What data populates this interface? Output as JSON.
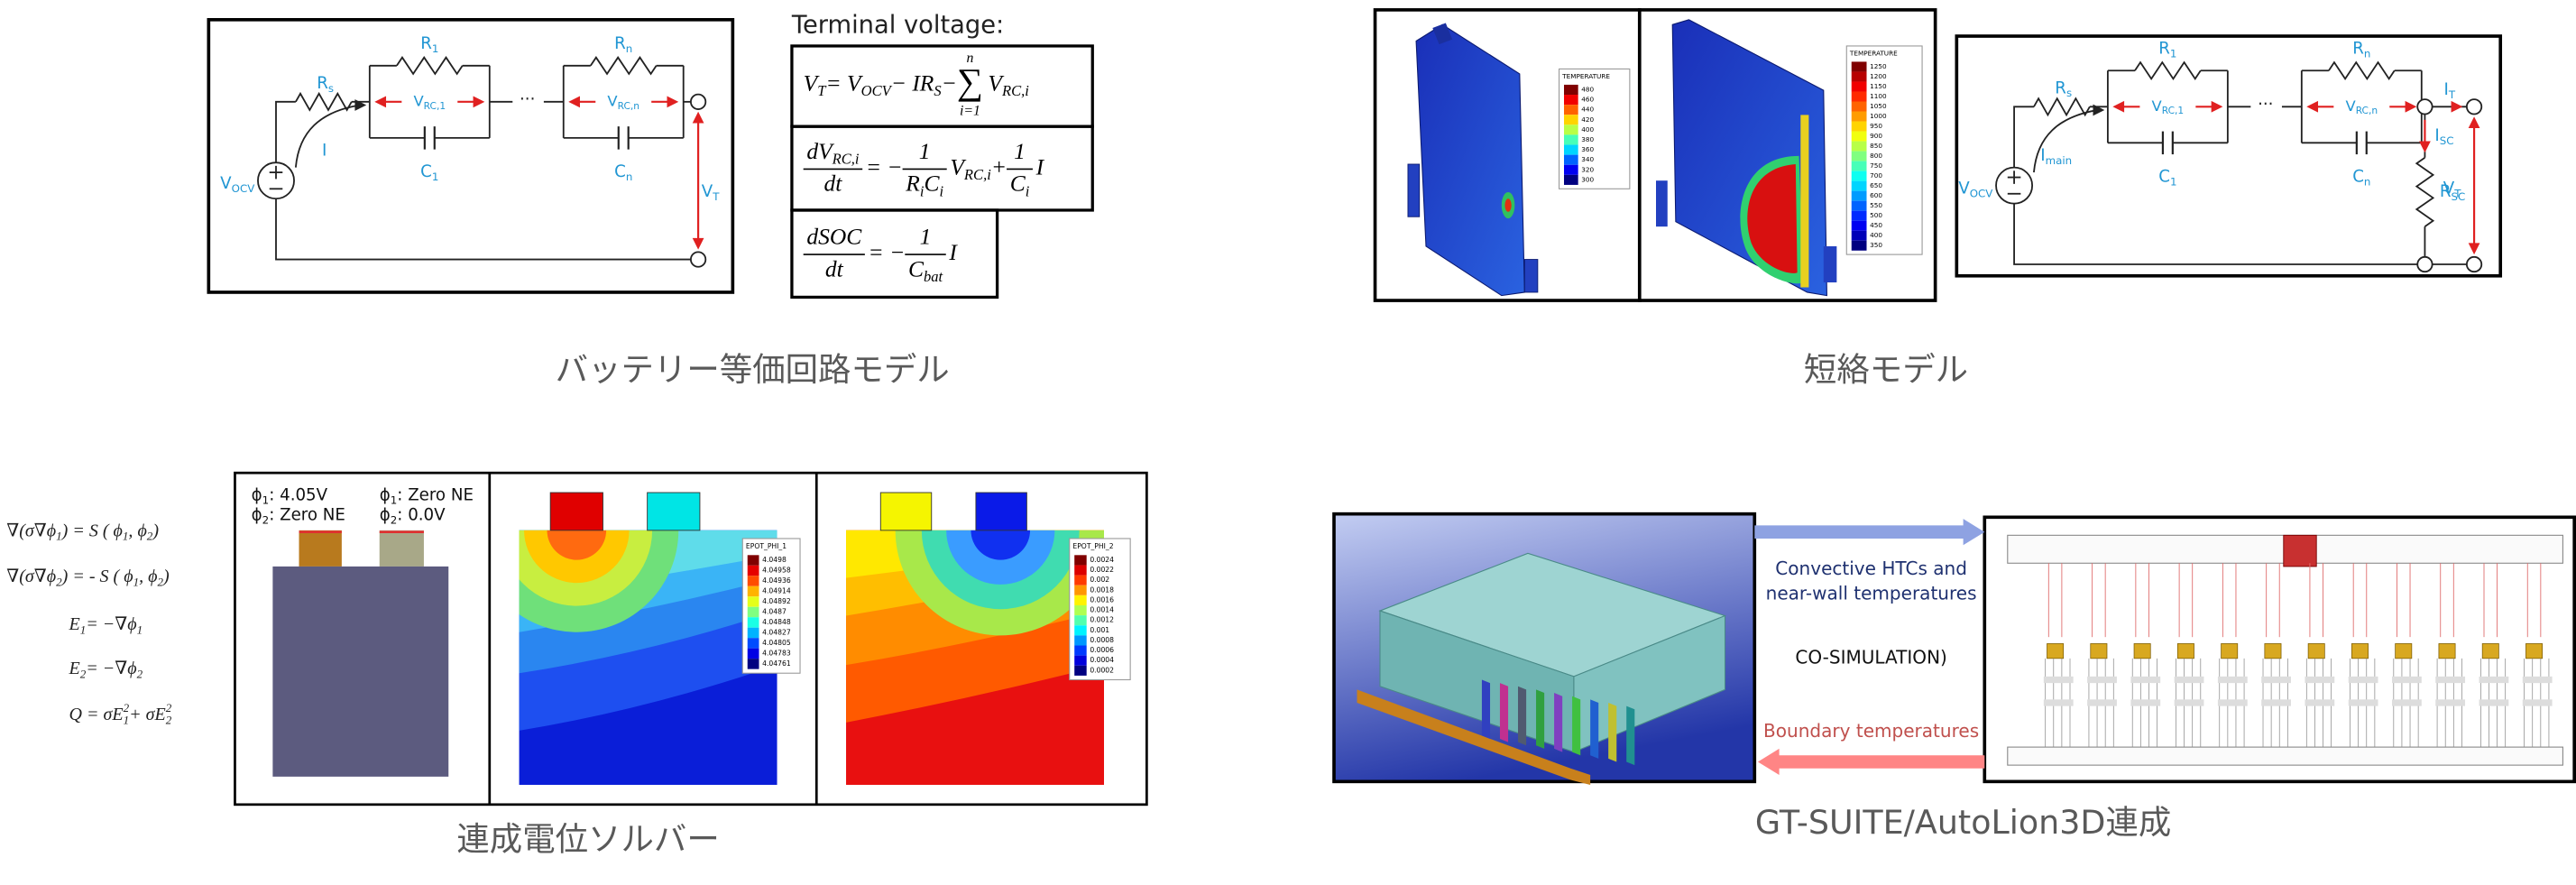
{
  "circuit_model": {
    "caption": "バッテリー等価回路モデル",
    "labels": {
      "rs": [
        "R",
        {
          "sub": "s"
        }
      ],
      "r1": [
        "R",
        {
          "sub": "1"
        }
      ],
      "rn": [
        "R",
        {
          "sub": "n"
        }
      ],
      "c1": [
        "C",
        {
          "sub": "1"
        }
      ],
      "cn": [
        "C",
        {
          "sub": "n"
        }
      ],
      "vrc1": [
        "V",
        {
          "sub": "RC,1"
        }
      ],
      "vrcn": [
        "V",
        {
          "sub": "RC,n"
        }
      ],
      "vocv": [
        "V",
        {
          "sub": "OCV"
        }
      ],
      "current": [
        "I"
      ],
      "vt": [
        "V",
        {
          "sub": "T"
        }
      ],
      "dots": [
        "···"
      ]
    },
    "equations_title": "Terminal voltage:",
    "equations": [
      [
        "V",
        {
          "sub": "T"
        },
        " = V",
        {
          "sub": "OCV"
        },
        " − IR",
        {
          "sub": "S"
        },
        " − ",
        {
          "sum": "∑",
          "top": "n",
          "bot": "i=1"
        },
        "V",
        {
          "sub": "RC,i"
        }
      ],
      [
        {
          "frac": [
            [
              "dV",
              {
                "sub": "RC,i"
              }
            ],
            [
              "dt"
            ]
          ]
        },
        " = −",
        {
          "frac": [
            [
              "1"
            ],
            [
              "R",
              {
                "sub": "i"
              },
              "C",
              {
                "sub": "i"
              }
            ]
          ]
        },
        "V",
        {
          "sub": "RC,i"
        },
        " + ",
        {
          "frac": [
            [
              "1"
            ],
            [
              "C",
              {
                "sub": "i"
              }
            ]
          ]
        },
        "I"
      ],
      [
        {
          "frac": [
            [
              "dSOC"
            ],
            [
              "dt"
            ]
          ]
        },
        " = −",
        {
          "frac": [
            [
              "1"
            ],
            [
              "C",
              {
                "sub": "bat"
              }
            ]
          ]
        },
        "I"
      ]
    ]
  },
  "short_circuit_model": {
    "caption": "短絡モデル",
    "legends": [
      {
        "title": "TEMPERATURE",
        "values": [
          480,
          460,
          440,
          420,
          400,
          380,
          360,
          340,
          320,
          300
        ]
      },
      {
        "title": "TEMPERATURE",
        "values": [
          1250,
          1200,
          1150,
          1100,
          1050,
          1000,
          950,
          900,
          850,
          800,
          750,
          700,
          650,
          600,
          550,
          500,
          450,
          400,
          350
        ]
      }
    ],
    "labels": {
      "rs": [
        "R",
        {
          "sub": "s"
        }
      ],
      "r1": [
        "R",
        {
          "sub": "1"
        }
      ],
      "rn": [
        "R",
        {
          "sub": "n"
        }
      ],
      "c1": [
        "C",
        {
          "sub": "1"
        }
      ],
      "cn": [
        "C",
        {
          "sub": "n"
        }
      ],
      "vrc1": [
        "V",
        {
          "sub": "RC,1"
        }
      ],
      "vrcn": [
        "V",
        {
          "sub": "RC,n"
        }
      ],
      "vocv": [
        "V",
        {
          "sub": "OCV"
        }
      ],
      "current": [
        "I",
        {
          "sub": "main"
        }
      ],
      "vt": [
        "V",
        {
          "sub": "T"
        }
      ],
      "dots": [
        "···"
      ],
      "it": [
        "I",
        {
          "sub": "T"
        }
      ],
      "isc": [
        "I",
        {
          "sub": "SC"
        }
      ],
      "rsc": [
        "R",
        {
          "sub": "SC"
        }
      ]
    }
  },
  "potential_solver": {
    "caption": "連成電位ソルバー",
    "equations": [
      [
        "∇(σ∇ϕ",
        {
          "sub": "1"
        },
        ") =  S ( ϕ",
        {
          "sub": "1"
        },
        " , ϕ",
        {
          "sub": "2"
        },
        " )"
      ],
      [
        "∇(σ∇ϕ",
        {
          "sub": "2"
        },
        ") = - S ( ϕ",
        {
          "sub": "1"
        },
        " , ϕ",
        {
          "sub": "2"
        },
        " )"
      ],
      [
        "E",
        {
          "sub": "1"
        },
        " = −∇ϕ",
        {
          "sub": "1"
        }
      ],
      [
        "E",
        {
          "sub": "2"
        },
        " = −∇ϕ",
        {
          "sub": "2"
        }
      ],
      [
        "Q = σE",
        {
          "sub": "1"
        },
        {
          "sup": "2"
        },
        " + σE",
        {
          "sub": "2"
        },
        {
          "sup": "2"
        }
      ]
    ],
    "tab_labels": [
      [
        "ϕ",
        {
          "sub": "1"
        },
        ": 4.05V"
      ],
      [
        "ϕ",
        {
          "sub": "2"
        },
        ": Zero NE"
      ],
      [
        "ϕ",
        {
          "sub": "1"
        },
        ": Zero NE"
      ],
      [
        "ϕ",
        {
          "sub": "2"
        },
        ": 0.0V"
      ]
    ],
    "legends": [
      {
        "title": "EPOT_PHI_1",
        "values": [
          4.0498,
          4.04958,
          4.04936,
          4.04914,
          4.04892,
          4.0487,
          4.04848,
          4.04827,
          4.04805,
          4.04783,
          4.04761
        ]
      },
      {
        "title": "EPOT_PHI_2",
        "values": [
          0.0024,
          0.0022,
          0.002,
          0.0018,
          0.0016,
          0.0014,
          0.0012,
          0.001,
          0.0008,
          0.0006,
          0.0004,
          0.0002
        ]
      }
    ]
  },
  "cosimulation": {
    "caption": "GT-SUITE/AutoLion3D連成",
    "forward_label": [
      "Convective HTCs  and",
      "near-wall temperatures"
    ],
    "center_label": "CO-SIMULATION)",
    "return_label": "Boundary temperatures"
  }
}
